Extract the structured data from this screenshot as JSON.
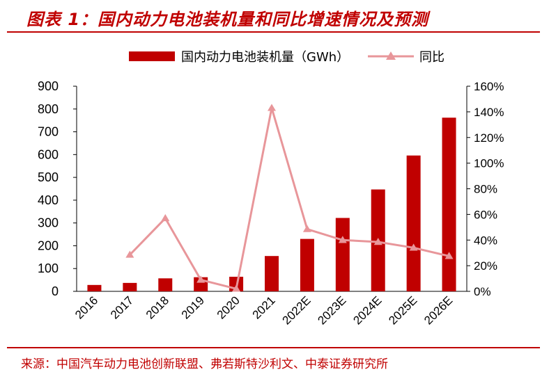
{
  "title": "图表 1：国内动力电池装机量和同比增速情况及预测",
  "source": "来源：中国汽车动力电池创新联盟、弗若斯特沙利文、中泰证券研究所",
  "colors": {
    "bar": "#C00000",
    "line": "#E8969A",
    "text": "#000000",
    "accent": "#C00000"
  },
  "chart_data": {
    "type": "bar+line",
    "categories": [
      "2016",
      "2017",
      "2018",
      "2019",
      "2020",
      "2021",
      "2022E",
      "2023E",
      "2024E",
      "2025E",
      "2026E"
    ],
    "series": [
      {
        "name": "国内动力电池装机量（GWh）",
        "type": "bar",
        "axis": "left",
        "values": [
          28,
          37,
          57,
          62,
          64,
          155,
          230,
          322,
          447,
          596,
          762
        ]
      },
      {
        "name": "同比",
        "type": "line",
        "axis": "right",
        "unit": "%",
        "values": [
          null,
          28.5,
          57,
          9,
          2,
          143,
          48.5,
          40,
          38.5,
          34,
          27.5
        ]
      }
    ],
    "y_left": {
      "range": [
        0,
        900
      ],
      "ticks": [
        "0",
        "100",
        "200",
        "300",
        "400",
        "500",
        "600",
        "700",
        "800",
        "900"
      ]
    },
    "y_right": {
      "range": [
        0,
        160
      ],
      "ticks": [
        "0%",
        "20%",
        "40%",
        "60%",
        "80%",
        "100%",
        "120%",
        "140%",
        "160%"
      ]
    },
    "legend": "top",
    "grid": false
  }
}
